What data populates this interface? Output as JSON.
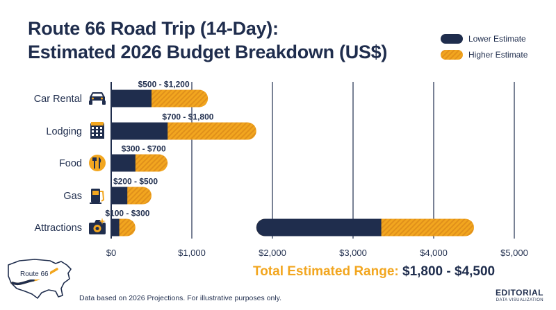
{
  "title_line1": "Route 66 Road Trip (14-Day):",
  "title_line2": "Estimated 2026 Budget Breakdown (US$)",
  "legend": {
    "low": {
      "label": "Lower Estimate",
      "color": "#1f2d4d"
    },
    "high": {
      "label": "Higher Estimate",
      "color": "#f2a61f"
    }
  },
  "chart_data": {
    "type": "bar",
    "orientation": "horizontal",
    "categories": [
      "Car Rental",
      "Lodging",
      "Food",
      "Gas",
      "Attractions",
      "Total"
    ],
    "category_icons": [
      "car-icon",
      "motel-icon",
      "food-icon",
      "gas-pump-icon",
      "camera-icon",
      ""
    ],
    "series": [
      {
        "name": "Lower Estimate",
        "values": [
          500,
          700,
          300,
          200,
          100,
          1800
        ]
      },
      {
        "name": "Higher Estimate",
        "values": [
          1200,
          1800,
          700,
          500,
          300,
          4500
        ]
      }
    ],
    "range_labels": [
      "$500 - $1,200",
      "$700 - $1,800",
      "$300 - $700",
      "$200 - $500",
      "$100 - $300",
      ""
    ],
    "xlim": [
      0,
      5000
    ],
    "xticks": [
      0,
      1000,
      2000,
      3000,
      4000,
      5000
    ],
    "xtick_labels": [
      "$0",
      "$1,000",
      "$2,000",
      "$3,000",
      "$4,000",
      "$5,000"
    ],
    "grid": true,
    "legend_position": "top-right"
  },
  "total": {
    "label": "Total Estimated Range:",
    "value": "$1,800 - $4,500"
  },
  "map": {
    "label": "Route 66"
  },
  "footnote": "Data based on 2026 Projections. For illustrative purposes only.",
  "brand": {
    "main": "EDITORIAL",
    "sub": "DATA VISUALIZATION"
  }
}
